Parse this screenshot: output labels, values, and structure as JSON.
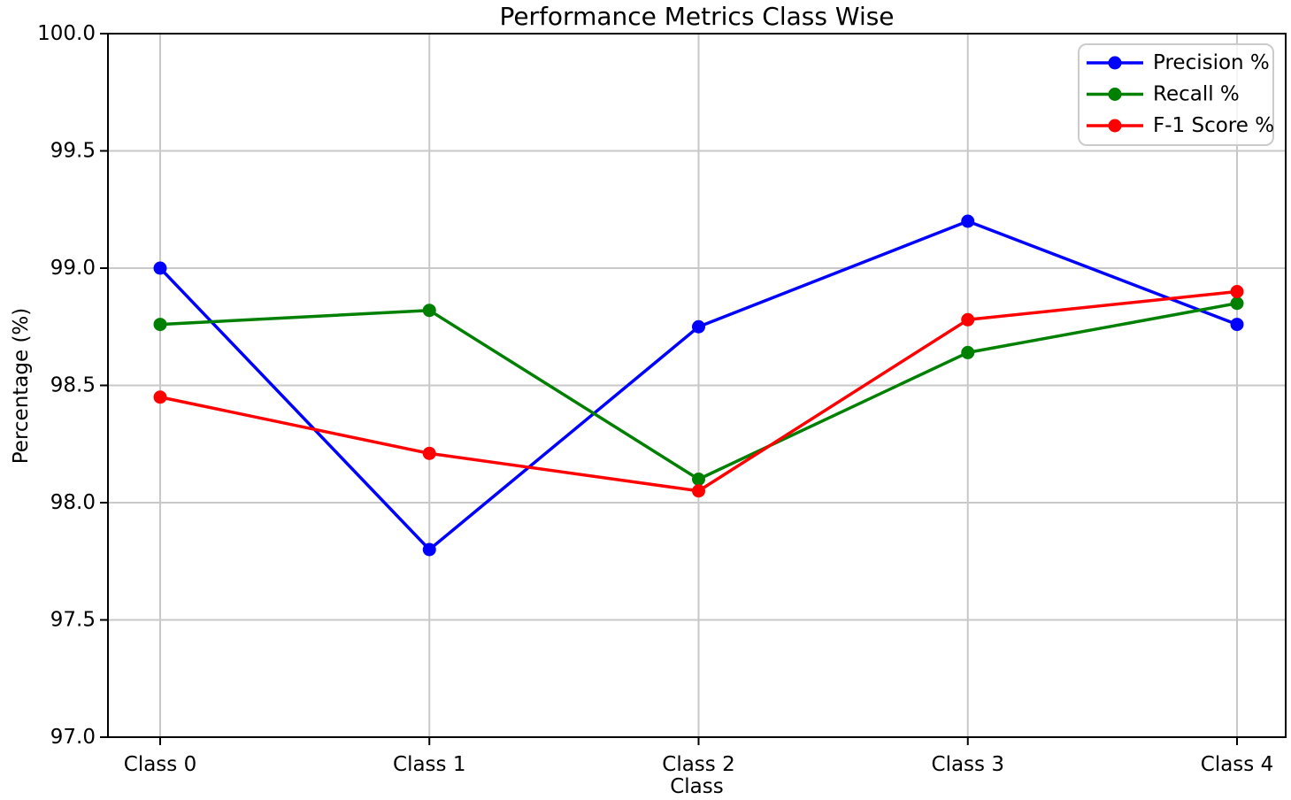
{
  "chart_data": {
    "type": "line",
    "title": "Performance Metrics Class Wise",
    "xlabel": "Class",
    "ylabel": "Percentage (%)",
    "categories": [
      "Class 0",
      "Class 1",
      "Class 2",
      "Class 3",
      "Class 4"
    ],
    "series": [
      {
        "name": "Precision %",
        "color": "#0000ff",
        "values": [
          99.0,
          97.8,
          98.75,
          99.2,
          98.76
        ]
      },
      {
        "name": "Recall %",
        "color": "#008000",
        "values": [
          98.76,
          98.82,
          98.1,
          98.64,
          98.85
        ]
      },
      {
        "name": "F-1 Score %",
        "color": "#ff0000",
        "values": [
          98.45,
          98.21,
          98.05,
          98.78,
          98.9
        ]
      }
    ],
    "ylim": [
      97.0,
      100.0
    ],
    "ytick_step": 0.5,
    "ytick_labels": [
      "97.0",
      "97.5",
      "98.0",
      "98.5",
      "99.0",
      "99.5",
      "100.0"
    ],
    "grid": true,
    "legend_position": "upper right",
    "marker": "circle"
  },
  "colors": {
    "background": "#ffffff",
    "grid": "#c8c8c8",
    "spine": "#000000",
    "tick": "#000000",
    "text": "#000000",
    "legend_border": "#cbcbcb",
    "legend_background": "#ffffff"
  }
}
